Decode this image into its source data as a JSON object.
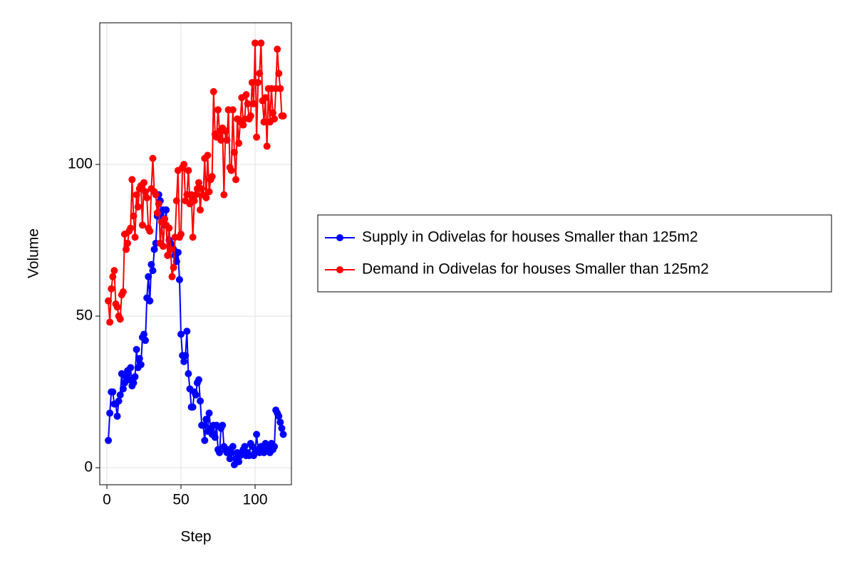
{
  "chart_data": {
    "type": "line",
    "x_label": "Step",
    "y_label": "Volume",
    "x": [
      1,
      2,
      3,
      4,
      5,
      6,
      7,
      8,
      9,
      10,
      11,
      12,
      13,
      14,
      15,
      16,
      17,
      18,
      19,
      20,
      21,
      22,
      23,
      24,
      25,
      26,
      27,
      28,
      29,
      30,
      31,
      32,
      33,
      34,
      35,
      36,
      37,
      38,
      39,
      40,
      41,
      42,
      43,
      44,
      45,
      46,
      47,
      48,
      49,
      50,
      51,
      52,
      53,
      54,
      55,
      56,
      57,
      58,
      59,
      60,
      61,
      62,
      63,
      64,
      65,
      66,
      67,
      68,
      69,
      70,
      71,
      72,
      73,
      74,
      75,
      76,
      77,
      78,
      79,
      80,
      81,
      82,
      83,
      84,
      85,
      86,
      87,
      88,
      89,
      90,
      91,
      92,
      93,
      94,
      95,
      96,
      97,
      98,
      99,
      100,
      101,
      102,
      103,
      104,
      105,
      106,
      107,
      108,
      109,
      110,
      111,
      112,
      113,
      114,
      115,
      116,
      117,
      118,
      119
    ],
    "series": [
      {
        "name": "Supply in Odivelas for houses Smaller than 125m2",
        "color": "#0000ff",
        "values": [
          9,
          18,
          25,
          25,
          21,
          21,
          17,
          22,
          24,
          31,
          26,
          28,
          30,
          32,
          29,
          33,
          27,
          28,
          30,
          39,
          33,
          36,
          34,
          43,
          44,
          42,
          56,
          63,
          55,
          67,
          65,
          72,
          74,
          83,
          90,
          88,
          82,
          85,
          80,
          85,
          70,
          75,
          74,
          73,
          72,
          70,
          68,
          71,
          62,
          44,
          37,
          35,
          37,
          45,
          31,
          26,
          20,
          20,
          25,
          24,
          28,
          29,
          22,
          14,
          14,
          9,
          16,
          12,
          18,
          13,
          11,
          14,
          10,
          14,
          6,
          5,
          13,
          14,
          7,
          6,
          5,
          6,
          3,
          5,
          7,
          1,
          3,
          5,
          2,
          4,
          5,
          6,
          7,
          4,
          5,
          4,
          8,
          7,
          4,
          5,
          11,
          6,
          5,
          7,
          6,
          5,
          8,
          6,
          7,
          5,
          8,
          6,
          7,
          19,
          18,
          17,
          15,
          13,
          11
        ]
      },
      {
        "name": "Demand in Odivelas for houses Smaller than 125m2",
        "color": "#ff0000",
        "values": [
          55,
          48,
          59,
          63,
          65,
          54,
          53,
          50,
          49,
          57,
          58,
          77,
          72,
          74,
          78,
          79,
          95,
          83,
          76,
          90,
          86,
          92,
          93,
          80,
          94,
          91,
          89,
          79,
          78,
          92,
          102,
          91,
          90,
          84,
          87,
          74,
          81,
          73,
          82,
          80,
          70,
          79,
          72,
          63,
          66,
          76,
          88,
          98,
          76,
          77,
          99,
          100,
          88,
          90,
          98,
          87,
          90,
          76,
          88,
          90,
          92,
          94,
          85,
          92,
          90,
          102,
          89,
          103,
          91,
          95,
          96,
          124,
          110,
          109,
          118,
          111,
          108,
          112,
          90,
          111,
          108,
          118,
          99,
          98,
          118,
          104,
          95,
          115,
          107,
          114,
          122,
          113,
          115,
          123,
          120,
          115,
          116,
          127,
          120,
          140,
          109,
          127,
          130,
          140,
          121,
          114,
          122,
          106,
          125,
          114,
          125,
          117,
          115,
          125,
          138,
          130,
          125,
          116,
          116
        ]
      }
    ],
    "xlim": [
      -4.8,
      124.5
    ],
    "ylim": [
      -5.6,
      146.7
    ],
    "xticks": [
      0,
      50,
      100
    ],
    "yticks": [
      0,
      50,
      100
    ],
    "grid": true,
    "legend": "right"
  }
}
